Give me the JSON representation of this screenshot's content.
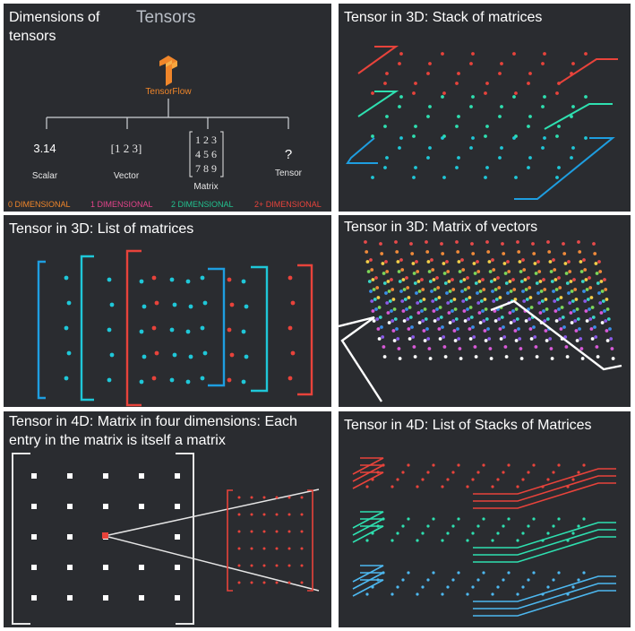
{
  "panels": {
    "p1": {
      "title_line1": "Dimensions of",
      "title_line2": "tensors",
      "heading": "Tensors",
      "logo_text": "TensorFlow",
      "items": [
        {
          "value": "3.14",
          "label": "Scalar",
          "dim": "0 DIMENSIONAL"
        },
        {
          "value": "[1 2 3]",
          "label": "Vector",
          "dim": "1 DIMENSIONAL"
        },
        {
          "value": [
            "1 2 3",
            "4 5 6",
            "7 8 9"
          ],
          "label": "Matrix",
          "dim": "2 DIMENSIONAL"
        },
        {
          "value": "?",
          "label": "Tensor",
          "dim": "2+ DIMENSIONAL"
        }
      ]
    },
    "p2": {
      "title": "Tensor in 3D: Stack of matrices"
    },
    "p3": {
      "title": "Tensor in 3D: List of matrices"
    },
    "p4": {
      "title": "Tensor in 3D: Matrix of vectors"
    },
    "p5": {
      "title_line1": "Tensor in 4D: Matrix in four dimensions: Each",
      "title_line2": "entry in the matrix is itself a matrix"
    },
    "p6": {
      "title": "Tensor in 4D: List of Stacks of Matrices"
    }
  },
  "colors": {
    "panel_bg": "#2a2c30",
    "orange": "#f0862a",
    "pink": "#e4438b",
    "green": "#22c28f",
    "red": "#e8433b",
    "cyan": "#1fc7d8",
    "blue": "#1e9ee0",
    "teal": "#2ee0b0",
    "white": "#ffffff"
  }
}
